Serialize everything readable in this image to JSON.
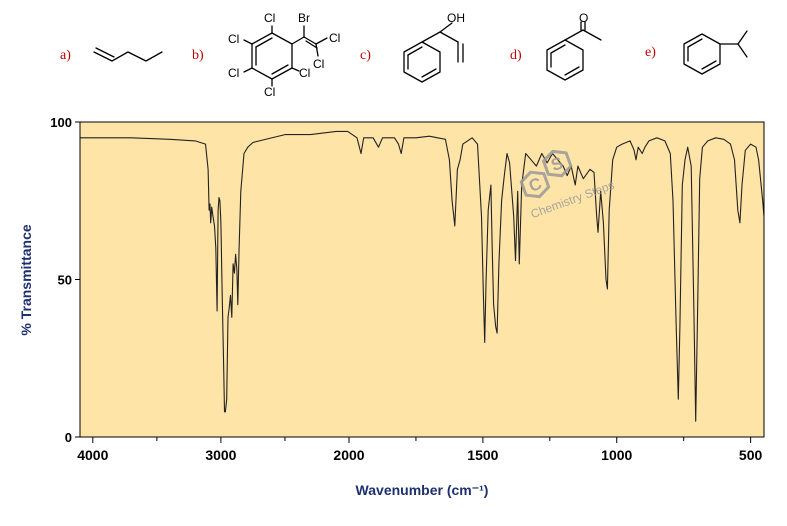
{
  "options": [
    {
      "label": "a)",
      "structure": "1-pentene",
      "atoms": []
    },
    {
      "label": "b)",
      "structure": "pentachlorophenyl-bromodichloroethene",
      "atoms": [
        "Cl",
        "Br",
        "Cl",
        "Cl",
        "Cl",
        "Cl",
        "Cl",
        "Cl"
      ]
    },
    {
      "label": "c)",
      "structure": "1-phenylprop-2-en-1-ol",
      "atoms": [
        "OH"
      ]
    },
    {
      "label": "d)",
      "structure": "acetophenone",
      "atoms": [
        "O"
      ]
    },
    {
      "label": "e)",
      "structure": "cumene",
      "atoms": []
    }
  ],
  "watermark": {
    "letters": [
      "C",
      "S"
    ],
    "text": "Chemistry Steps"
  },
  "chart_data": {
    "type": "line",
    "title": "",
    "xlabel": "Wavenumber (cm⁻¹)",
    "ylabel": "% Transmittance",
    "xlim": [
      4100,
      450
    ],
    "ylim": [
      0,
      100
    ],
    "x_ticks": [
      4000,
      3000,
      2000,
      1500,
      1000,
      500
    ],
    "x_tick_labels": [
      "4000",
      "3000",
      "2000",
      "1500",
      "1000",
      "500"
    ],
    "y_ticks": [
      0,
      50,
      100
    ],
    "y_tick_labels": [
      "0",
      "50",
      "100"
    ],
    "plot_background": "#ffe4a8",
    "line_color": "#222222",
    "grid": false,
    "series": [
      {
        "name": "",
        "points": [
          [
            4100,
            95
          ],
          [
            3700,
            95
          ],
          [
            3400,
            94.5
          ],
          [
            3200,
            94
          ],
          [
            3120,
            93
          ],
          [
            3100,
            85
          ],
          [
            3092,
            72
          ],
          [
            3085,
            74
          ],
          [
            3080,
            68
          ],
          [
            3072,
            73
          ],
          [
            3062,
            70
          ],
          [
            3050,
            67
          ],
          [
            3040,
            60
          ],
          [
            3030,
            40
          ],
          [
            3022,
            72
          ],
          [
            3015,
            76
          ],
          [
            3008,
            75
          ],
          [
            3000,
            68
          ],
          [
            2990,
            45
          ],
          [
            2980,
            25
          ],
          [
            2972,
            8
          ],
          [
            2965,
            8
          ],
          [
            2955,
            12
          ],
          [
            2945,
            38
          ],
          [
            2935,
            41
          ],
          [
            2925,
            45
          ],
          [
            2915,
            38
          ],
          [
            2905,
            55
          ],
          [
            2895,
            52
          ],
          [
            2885,
            58
          ],
          [
            2875,
            53
          ],
          [
            2868,
            42
          ],
          [
            2858,
            60
          ],
          [
            2845,
            78
          ],
          [
            2820,
            90
          ],
          [
            2790,
            92
          ],
          [
            2750,
            93.5
          ],
          [
            2700,
            94
          ],
          [
            2500,
            96
          ],
          [
            2300,
            96
          ],
          [
            2100,
            97
          ],
          [
            2010,
            97
          ],
          [
            1970,
            95
          ],
          [
            1955,
            90
          ],
          [
            1945,
            95
          ],
          [
            1910,
            95
          ],
          [
            1890,
            92
          ],
          [
            1875,
            95
          ],
          [
            1830,
            95
          ],
          [
            1815,
            93
          ],
          [
            1805,
            90
          ],
          [
            1795,
            95
          ],
          [
            1750,
            95
          ],
          [
            1700,
            95.5
          ],
          [
            1640,
            94.5
          ],
          [
            1625,
            88
          ],
          [
            1615,
            75
          ],
          [
            1605,
            67
          ],
          [
            1595,
            85
          ],
          [
            1585,
            88
          ],
          [
            1575,
            93
          ],
          [
            1540,
            95
          ],
          [
            1520,
            93
          ],
          [
            1505,
            70
          ],
          [
            1498,
            45
          ],
          [
            1493,
            30
          ],
          [
            1488,
            50
          ],
          [
            1480,
            72
          ],
          [
            1470,
            80
          ],
          [
            1465,
            60
          ],
          [
            1460,
            42
          ],
          [
            1452,
            35
          ],
          [
            1447,
            33
          ],
          [
            1440,
            55
          ],
          [
            1430,
            75
          ],
          [
            1420,
            83
          ],
          [
            1410,
            90
          ],
          [
            1400,
            87
          ],
          [
            1385,
            70
          ],
          [
            1378,
            56
          ],
          [
            1370,
            78
          ],
          [
            1364,
            55
          ],
          [
            1355,
            80
          ],
          [
            1340,
            90
          ],
          [
            1320,
            88
          ],
          [
            1300,
            86
          ],
          [
            1280,
            90
          ],
          [
            1260,
            87
          ],
          [
            1240,
            90
          ],
          [
            1220,
            88
          ],
          [
            1200,
            86
          ],
          [
            1185,
            83
          ],
          [
            1170,
            86
          ],
          [
            1155,
            80
          ],
          [
            1145,
            86
          ],
          [
            1125,
            82
          ],
          [
            1100,
            85
          ],
          [
            1085,
            84
          ],
          [
            1075,
            70
          ],
          [
            1070,
            65
          ],
          [
            1060,
            78
          ],
          [
            1050,
            68
          ],
          [
            1040,
            50
          ],
          [
            1035,
            47
          ],
          [
            1028,
            72
          ],
          [
            1015,
            88
          ],
          [
            1000,
            92
          ],
          [
            980,
            93
          ],
          [
            950,
            94
          ],
          [
            935,
            91
          ],
          [
            928,
            88
          ],
          [
            920,
            92
          ],
          [
            905,
            90
          ],
          [
            895,
            92
          ],
          [
            880,
            94
          ],
          [
            850,
            95
          ],
          [
            820,
            94
          ],
          [
            800,
            90
          ],
          [
            790,
            75
          ],
          [
            778,
            35
          ],
          [
            770,
            12
          ],
          [
            764,
            35
          ],
          [
            755,
            80
          ],
          [
            745,
            88
          ],
          [
            735,
            92
          ],
          [
            722,
            86
          ],
          [
            712,
            40
          ],
          [
            705,
            5
          ],
          [
            698,
            40
          ],
          [
            690,
            82
          ],
          [
            680,
            92
          ],
          [
            660,
            94
          ],
          [
            630,
            95
          ],
          [
            600,
            94.5
          ],
          [
            575,
            93
          ],
          [
            560,
            88
          ],
          [
            548,
            72
          ],
          [
            540,
            68
          ],
          [
            532,
            80
          ],
          [
            520,
            91
          ],
          [
            500,
            93
          ],
          [
            480,
            92
          ],
          [
            470,
            88
          ],
          [
            455,
            75
          ],
          [
            450,
            70
          ]
        ]
      }
    ]
  }
}
